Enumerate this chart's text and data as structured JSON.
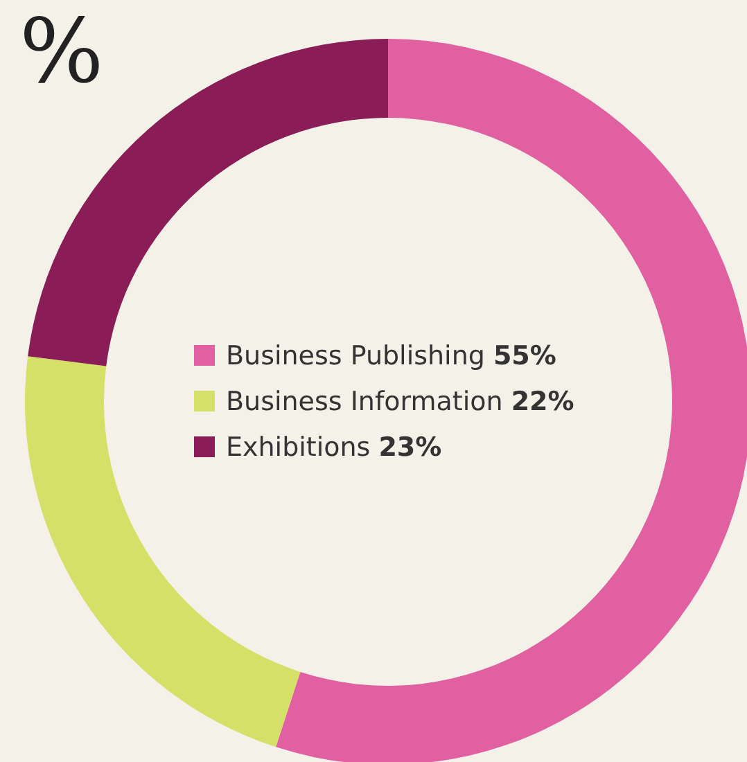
{
  "chart_data": {
    "type": "donut",
    "title": "%",
    "categories": [
      "Business Publishing",
      "Business Information",
      "Exhibitions"
    ],
    "values": [
      55,
      22,
      23
    ],
    "colors": [
      "#e060a2",
      "#d4e068",
      "#8a1c58"
    ],
    "legend": "center",
    "data_labels": true
  }
}
